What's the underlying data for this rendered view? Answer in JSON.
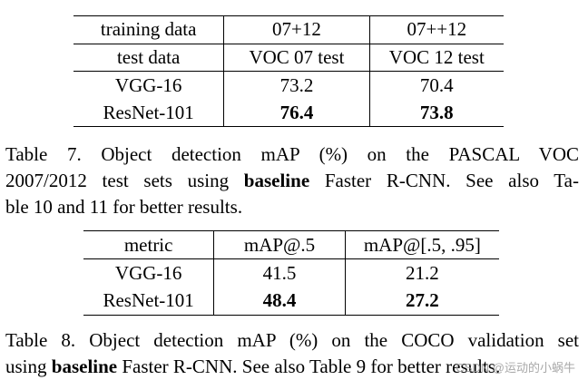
{
  "table7": {
    "rows": [
      [
        "training data",
        "07+12",
        "07++12"
      ],
      [
        "test data",
        "VOC 07 test",
        "VOC 12 test"
      ],
      [
        "VGG-16",
        "73.2",
        "70.4"
      ],
      [
        "ResNet-101",
        "76.4",
        "73.8"
      ]
    ]
  },
  "caption7": {
    "line1": "Table 7. Object detection mAP (%) on the PASCAL VOC",
    "line2_pre": "2007/2012 test sets using ",
    "line2_bold": "baseline",
    "line2_post": " Faster R-CNN. See also Ta-",
    "line3": "ble 10 and 11 for better results."
  },
  "table8": {
    "rows": [
      [
        "metric",
        "mAP@.5",
        "mAP@[.5, .95]"
      ],
      [
        "VGG-16",
        "41.5",
        "21.2"
      ],
      [
        "ResNet-101",
        "48.4",
        "27.2"
      ]
    ]
  },
  "caption8": {
    "line1": "Table 8. Object detection mAP (%) on the COCO validation set",
    "line2_pre": "using ",
    "line2_bold": "baseline",
    "line2_post": " Faster R-CNN. See also Table 9 for better results."
  },
  "watermark": "CSDN @运动的小蜗牛"
}
